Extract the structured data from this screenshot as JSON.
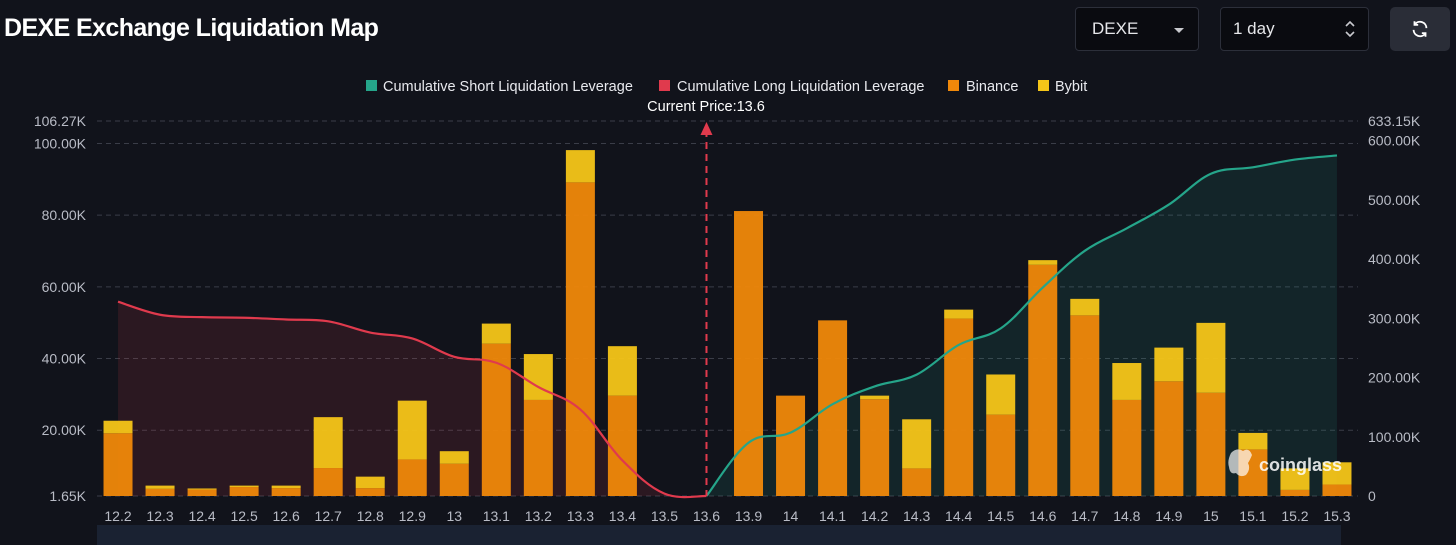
{
  "header": {
    "title": "DEXE Exchange Liquidation Map",
    "symbol": "DEXE",
    "interval": "1 day",
    "refresh_icon": "refresh-icon"
  },
  "watermark": "coinglass",
  "colors": {
    "short": "#25a58a",
    "long": "#e03a4d",
    "binance": "#f0880a",
    "bybit": "#f5c518"
  },
  "chart_data": {
    "type": "bar",
    "categories": [
      "12.2",
      "12.3",
      "12.4",
      "12.5",
      "12.6",
      "12.7",
      "12.8",
      "12.9",
      "13",
      "13.1",
      "13.2",
      "13.3",
      "13.4",
      "13.5",
      "13.6",
      "13.9",
      "14",
      "14.1",
      "14.2",
      "14.3",
      "14.4",
      "14.5",
      "14.6",
      "14.7",
      "14.8",
      "14.9",
      "15",
      "15.1",
      "15.2",
      "15.3"
    ],
    "series": [
      {
        "name": "Binance",
        "axis": "left",
        "values": [
          17500,
          2000,
          1800,
          2500,
          2200,
          7800,
          2200,
          10200,
          9000,
          42500,
          26800,
          87500,
          28000,
          0,
          0,
          79500,
          28000,
          49000,
          27000,
          7700,
          49500,
          22700,
          64500,
          50400,
          26800,
          32000,
          28800,
          13000,
          1700,
          3200
        ]
      },
      {
        "name": "Bybit",
        "axis": "left",
        "values": [
          3500,
          900,
          300,
          400,
          700,
          14200,
          3200,
          16400,
          3500,
          5600,
          12800,
          9000,
          13800,
          0,
          0,
          0,
          0,
          0,
          1000,
          13700,
          2500,
          11200,
          1300,
          4600,
          10300,
          9400,
          19500,
          4600,
          6000,
          6200
        ]
      },
      {
        "name": "Cumulative Short Liquidation Leverage",
        "axis": "right",
        "values": [
          null,
          null,
          null,
          null,
          null,
          null,
          null,
          null,
          null,
          null,
          null,
          null,
          null,
          null,
          0,
          90000,
          107000,
          155000,
          185000,
          205000,
          255000,
          283000,
          352000,
          414000,
          452000,
          492000,
          544000,
          555000,
          568000,
          575000
        ]
      },
      {
        "name": "Cumulative Long Liquidation Leverage",
        "axis": "right",
        "values": [
          328000,
          306000,
          302000,
          301000,
          298000,
          295000,
          276000,
          266000,
          235000,
          225000,
          184000,
          146000,
          60000,
          4000,
          0,
          null,
          null,
          null,
          null,
          null,
          null,
          null,
          null,
          null,
          null,
          null,
          null,
          null,
          null,
          null
        ]
      }
    ],
    "current_price_label": "Current Price:13.6",
    "y_left": {
      "ticks": [
        1650,
        20000,
        40000,
        60000,
        80000,
        100000,
        106270
      ],
      "tick_labels": [
        "1.65K",
        "20.00K",
        "40.00K",
        "60.00K",
        "80.00K",
        "100.00K",
        "106.27K"
      ],
      "min": 1650,
      "max": 106270
    },
    "y_right": {
      "ticks": [
        0,
        100000,
        200000,
        300000,
        400000,
        500000,
        600000,
        633150
      ],
      "tick_labels": [
        "0",
        "100.00K",
        "200.00K",
        "300.00K",
        "400.00K",
        "500.00K",
        "600.00K",
        "633.15K"
      ],
      "min": 0,
      "max": 633150
    },
    "grid": true,
    "legend_position": "top-center"
  }
}
